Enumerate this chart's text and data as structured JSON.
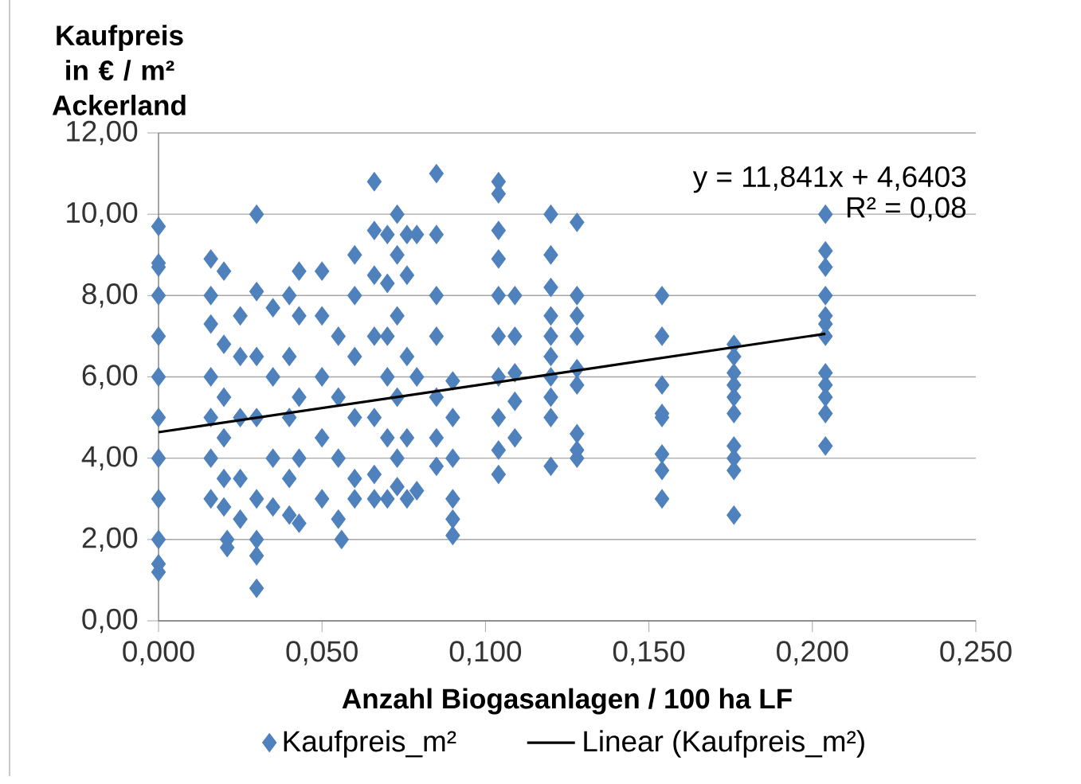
{
  "chart_data": {
    "type": "scatter",
    "ylabel": "Kaufpreis in € / m² Ackerland",
    "xlabel": "Anzahl Biogasanlagen / 100 ha LF",
    "xlim": [
      0,
      0.25
    ],
    "ylim": [
      0,
      12
    ],
    "xticks": [
      {
        "value": 0,
        "label": "0,000"
      },
      {
        "value": 0.05,
        "label": "0,050"
      },
      {
        "value": 0.1,
        "label": "0,100"
      },
      {
        "value": 0.15,
        "label": "0,150"
      },
      {
        "value": 0.2,
        "label": "0,200"
      },
      {
        "value": 0.25,
        "label": "0,250"
      }
    ],
    "yticks": [
      {
        "value": 0,
        "label": "0,00"
      },
      {
        "value": 2,
        "label": "2,00"
      },
      {
        "value": 4,
        "label": "4,00"
      },
      {
        "value": 6,
        "label": "6,00"
      },
      {
        "value": 8,
        "label": "8,00"
      },
      {
        "value": 10,
        "label": "10,00"
      },
      {
        "value": 12,
        "label": "12,00"
      }
    ],
    "grid": "y",
    "legend": "bottom",
    "marker": "diamond",
    "annotations": [
      "y = 11,841x + 4,6403",
      "R² = 0,08"
    ],
    "series": [
      {
        "name": "Kaufpreis_m²",
        "type": "scatter",
        "color": "#4f81bd",
        "x": [
          0,
          0,
          0,
          0,
          0,
          0,
          0,
          0,
          0,
          0,
          0,
          0,
          0.016,
          0.016,
          0.016,
          0.016,
          0.016,
          0.016,
          0.016,
          0.02,
          0.02,
          0.02,
          0.02,
          0.02,
          0.02,
          0.021,
          0.021,
          0.025,
          0.025,
          0.025,
          0.025,
          0.025,
          0.03,
          0.03,
          0.03,
          0.03,
          0.03,
          0.03,
          0.03,
          0.03,
          0.035,
          0.035,
          0.035,
          0.035,
          0.04,
          0.04,
          0.04,
          0.04,
          0.04,
          0.043,
          0.043,
          0.043,
          0.043,
          0.043,
          0.05,
          0.05,
          0.05,
          0.05,
          0.05,
          0.055,
          0.055,
          0.055,
          0.055,
          0.056,
          0.06,
          0.06,
          0.06,
          0.06,
          0.06,
          0.06,
          0.066,
          0.066,
          0.066,
          0.066,
          0.066,
          0.066,
          0.066,
          0.07,
          0.07,
          0.07,
          0.07,
          0.07,
          0.07,
          0.073,
          0.073,
          0.073,
          0.073,
          0.073,
          0.073,
          0.076,
          0.076,
          0.076,
          0.076,
          0.076,
          0.079,
          0.079,
          0.079,
          0.085,
          0.085,
          0.085,
          0.085,
          0.085,
          0.085,
          0.085,
          0.09,
          0.09,
          0.09,
          0.09,
          0.09,
          0.09,
          0.104,
          0.104,
          0.104,
          0.104,
          0.104,
          0.104,
          0.104,
          0.104,
          0.104,
          0.104,
          0.109,
          0.109,
          0.109,
          0.109,
          0.109,
          0.12,
          0.12,
          0.12,
          0.12,
          0.12,
          0.12,
          0.12,
          0.12,
          0.12,
          0.12,
          0.128,
          0.128,
          0.128,
          0.128,
          0.128,
          0.128,
          0.128,
          0.128,
          0.128,
          0.154,
          0.154,
          0.154,
          0.154,
          0.154,
          0.154,
          0.154,
          0.154,
          0.176,
          0.176,
          0.176,
          0.176,
          0.176,
          0.176,
          0.176,
          0.176,
          0.176,
          0.176,
          0.204,
          0.204,
          0.204,
          0.204,
          0.204,
          0.204,
          0.204,
          0.204,
          0.204,
          0.204,
          0.204,
          0.204
        ],
        "values": [
          9.7,
          8.8,
          8.7,
          8.0,
          7.0,
          6.0,
          5.0,
          4.0,
          3.0,
          2.0,
          1.4,
          1.2,
          8.9,
          8.0,
          7.3,
          6.0,
          5.0,
          4.0,
          3.0,
          8.6,
          6.8,
          5.5,
          4.5,
          3.5,
          2.8,
          1.8,
          2.0,
          7.5,
          6.5,
          5.0,
          3.5,
          2.5,
          10.0,
          8.1,
          6.5,
          5.0,
          3.0,
          2.0,
          1.6,
          0.8,
          7.7,
          6.0,
          4.0,
          2.8,
          8.0,
          6.5,
          5.0,
          3.5,
          2.6,
          8.6,
          7.5,
          5.5,
          4.0,
          2.4,
          8.6,
          7.5,
          6.0,
          4.5,
          3.0,
          7.0,
          5.5,
          4.0,
          2.5,
          2.0,
          9.0,
          8.0,
          6.5,
          5.0,
          3.5,
          3.0,
          10.8,
          9.6,
          8.5,
          7.0,
          5.0,
          3.6,
          3.0,
          9.5,
          8.3,
          7.0,
          6.0,
          4.5,
          3.0,
          10.0,
          9.0,
          7.5,
          5.5,
          4.0,
          3.3,
          9.5,
          8.5,
          6.5,
          4.5,
          3.0,
          9.5,
          6.0,
          3.2,
          11.0,
          9.5,
          8.0,
          7.0,
          5.5,
          4.5,
          3.8,
          5.9,
          5.0,
          4.0,
          3.0,
          2.5,
          2.1,
          10.8,
          10.5,
          9.6,
          8.9,
          8.0,
          7.0,
          6.0,
          5.0,
          4.2,
          3.6,
          8.0,
          7.0,
          6.1,
          5.4,
          4.5,
          10.0,
          9.0,
          8.2,
          7.5,
          7.0,
          6.5,
          6.0,
          5.5,
          5.0,
          3.8,
          9.8,
          8.0,
          7.5,
          7.0,
          6.2,
          5.8,
          4.6,
          4.2,
          4.0,
          8.0,
          7.0,
          5.8,
          5.1,
          5.0,
          4.1,
          3.7,
          3.0,
          6.8,
          6.5,
          6.1,
          5.8,
          5.5,
          5.1,
          4.3,
          4.0,
          3.7,
          2.6,
          10.0,
          9.1,
          8.7,
          8.0,
          7.5,
          7.3,
          7.0,
          6.1,
          5.8,
          5.5,
          5.1,
          4.3
        ]
      },
      {
        "name": "Linear (Kaufpreis_m²)",
        "type": "line",
        "color": "#000000",
        "marker": "none",
        "line_style": "solid",
        "x": [
          0,
          0.204
        ],
        "values": [
          4.64,
          7.06
        ]
      }
    ]
  }
}
